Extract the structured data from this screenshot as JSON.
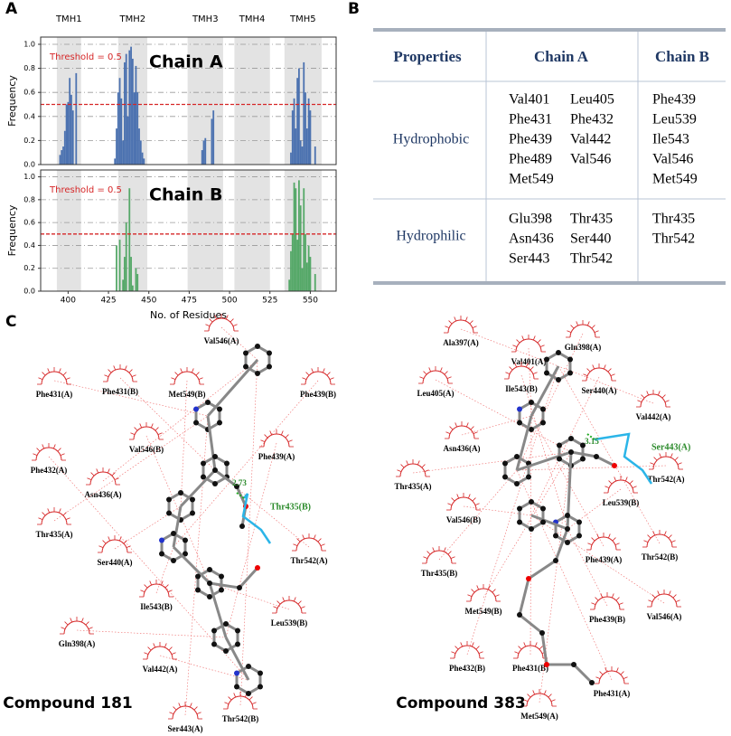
{
  "panel_labels": [
    "A",
    "B",
    "C"
  ],
  "chart_data": [
    {
      "type": "bar",
      "color": "#4c72b0",
      "annotation": "Chain A",
      "ylabel": "Frequency",
      "threshold": {
        "value": 0.5,
        "label": "Threshold = 0.5"
      },
      "bands": [
        {
          "label": "TMH1",
          "range": [
            393,
            408
          ]
        },
        {
          "label": "TMH2",
          "range": [
            431,
            449
          ]
        },
        {
          "label": "TMH3",
          "range": [
            474,
            496
          ]
        },
        {
          "label": "TMH4",
          "range": [
            503,
            525
          ]
        },
        {
          "label": "TMH5",
          "range": [
            534,
            557
          ]
        }
      ],
      "x": [
        395,
        396,
        397,
        398,
        399,
        400,
        401,
        402,
        403,
        405,
        429,
        430,
        431,
        432,
        433,
        434,
        435,
        436,
        437,
        438,
        439,
        440,
        441,
        442,
        443,
        444,
        445,
        446,
        447,
        483,
        484,
        485,
        489,
        490,
        538,
        539,
        540,
        541,
        542,
        543,
        544,
        545,
        546,
        547,
        548,
        549,
        550,
        553
      ],
      "values": [
        0.08,
        0.12,
        0.15,
        0.28,
        0.5,
        0.52,
        0.72,
        0.58,
        0.45,
        0.76,
        0.05,
        0.3,
        0.6,
        0.72,
        0.55,
        0.2,
        0.85,
        0.92,
        0.4,
        0.95,
        0.98,
        0.88,
        0.6,
        0.82,
        0.6,
        0.3,
        0.2,
        0.1,
        0.05,
        0.12,
        0.2,
        0.22,
        0.38,
        0.45,
        0.1,
        0.45,
        0.55,
        0.3,
        0.72,
        0.8,
        0.2,
        0.15,
        0.85,
        0.6,
        0.3,
        0.55,
        0.45,
        0.15
      ],
      "xlim": [
        383,
        566
      ],
      "ylim": [
        0,
        1.06
      ],
      "yticks": [
        {
          "value": 0,
          "label": "0.0"
        },
        0.2,
        0.4,
        0.6,
        0.8,
        {
          "value": 1,
          "label": "1.0"
        }
      ]
    },
    {
      "type": "bar",
      "color": "#55a868",
      "annotation": "Chain B",
      "ylabel": "Frequency",
      "xlabel": "No. of Residues",
      "threshold": {
        "value": 0.5,
        "label": "Threshold = 0.5"
      },
      "bands": [
        [
          393,
          408
        ],
        [
          431,
          449
        ],
        [
          474,
          496
        ],
        [
          503,
          525
        ],
        [
          534,
          557
        ]
      ],
      "x": [
        430,
        432,
        434,
        435,
        436,
        438,
        439,
        440,
        442,
        443,
        537,
        538,
        539,
        540,
        541,
        542,
        543,
        544,
        545,
        546,
        547,
        548,
        549,
        550,
        553
      ],
      "values": [
        0.4,
        0.45,
        0.1,
        0.3,
        0.6,
        0.9,
        0.3,
        0.05,
        0.2,
        0.15,
        0.1,
        0.35,
        0.5,
        0.95,
        0.9,
        0.45,
        0.97,
        0.75,
        0.2,
        0.9,
        0.5,
        0.25,
        0.4,
        0.3,
        0.15
      ],
      "xlim": [
        383,
        566
      ],
      "ylim": [
        0,
        1.06
      ],
      "xticks": [
        400,
        425,
        450,
        475,
        500,
        525,
        550
      ],
      "yticks": [
        {
          "value": 0,
          "label": "0.0"
        },
        0.2,
        0.4,
        0.6,
        0.8,
        {
          "value": 1,
          "label": "1.0"
        }
      ]
    }
  ],
  "table": {
    "header": [
      "Properties",
      "Chain A",
      "Chain B"
    ],
    "rows": [
      {
        "property": "Hydrophobic",
        "chain_a": [
          "Val401",
          "Leu405",
          "Phe431",
          "Phe432",
          "Phe439",
          "Val442",
          "Phe489",
          "Val546",
          "Met549"
        ],
        "chain_b": [
          "Phe439",
          "Leu539",
          "Ile543",
          "Val546",
          "Met549"
        ]
      },
      {
        "property": "Hydrophilic",
        "chain_a": [
          "Glu398",
          "Thr435",
          "Asn436",
          "Ser440",
          "Ser443",
          "Thr542"
        ],
        "chain_b": [
          "Thr435",
          "Thr542"
        ]
      }
    ]
  },
  "diagrams": [
    {
      "compound": "Compound 181",
      "hbond": "2.73",
      "hbond_residue": "Thr435(B)",
      "residues": [
        "Val546(A)",
        "Phe431(A)",
        "Phe431(B)",
        "Met549(B)",
        "Phe439(B)",
        "Val546(B)",
        "Phe439(A)",
        "Phe432(A)",
        "Asn436(A)",
        "Thr435(A)",
        "Thr542(A)",
        "Ser440(A)",
        "Ile543(B)",
        "Leu539(B)",
        "Gln398(A)",
        "Val442(A)",
        "Thr542(B)",
        "Ser443(A)"
      ]
    },
    {
      "compound": "Compound 383",
      "hbond": "3.15",
      "hbond_residue": "Ser443(A)",
      "residues": [
        "Ala397(A)",
        "Val401(A)",
        "Gln398(A)",
        "Leu405(A)",
        "Ile543(B)",
        "Ser440(A)",
        "Val442(A)",
        "Asn436(A)",
        "Thr542(A)",
        "Thr435(A)",
        "Leu539(B)",
        "Val546(B)",
        "Thr542(B)",
        "Phe439(A)",
        "Thr435(B)",
        "Met549(B)",
        "Phe439(B)",
        "Val546(A)",
        "Phe432(B)",
        "Phe431(B)",
        "Phe431(A)",
        "Met549(A)"
      ]
    }
  ]
}
